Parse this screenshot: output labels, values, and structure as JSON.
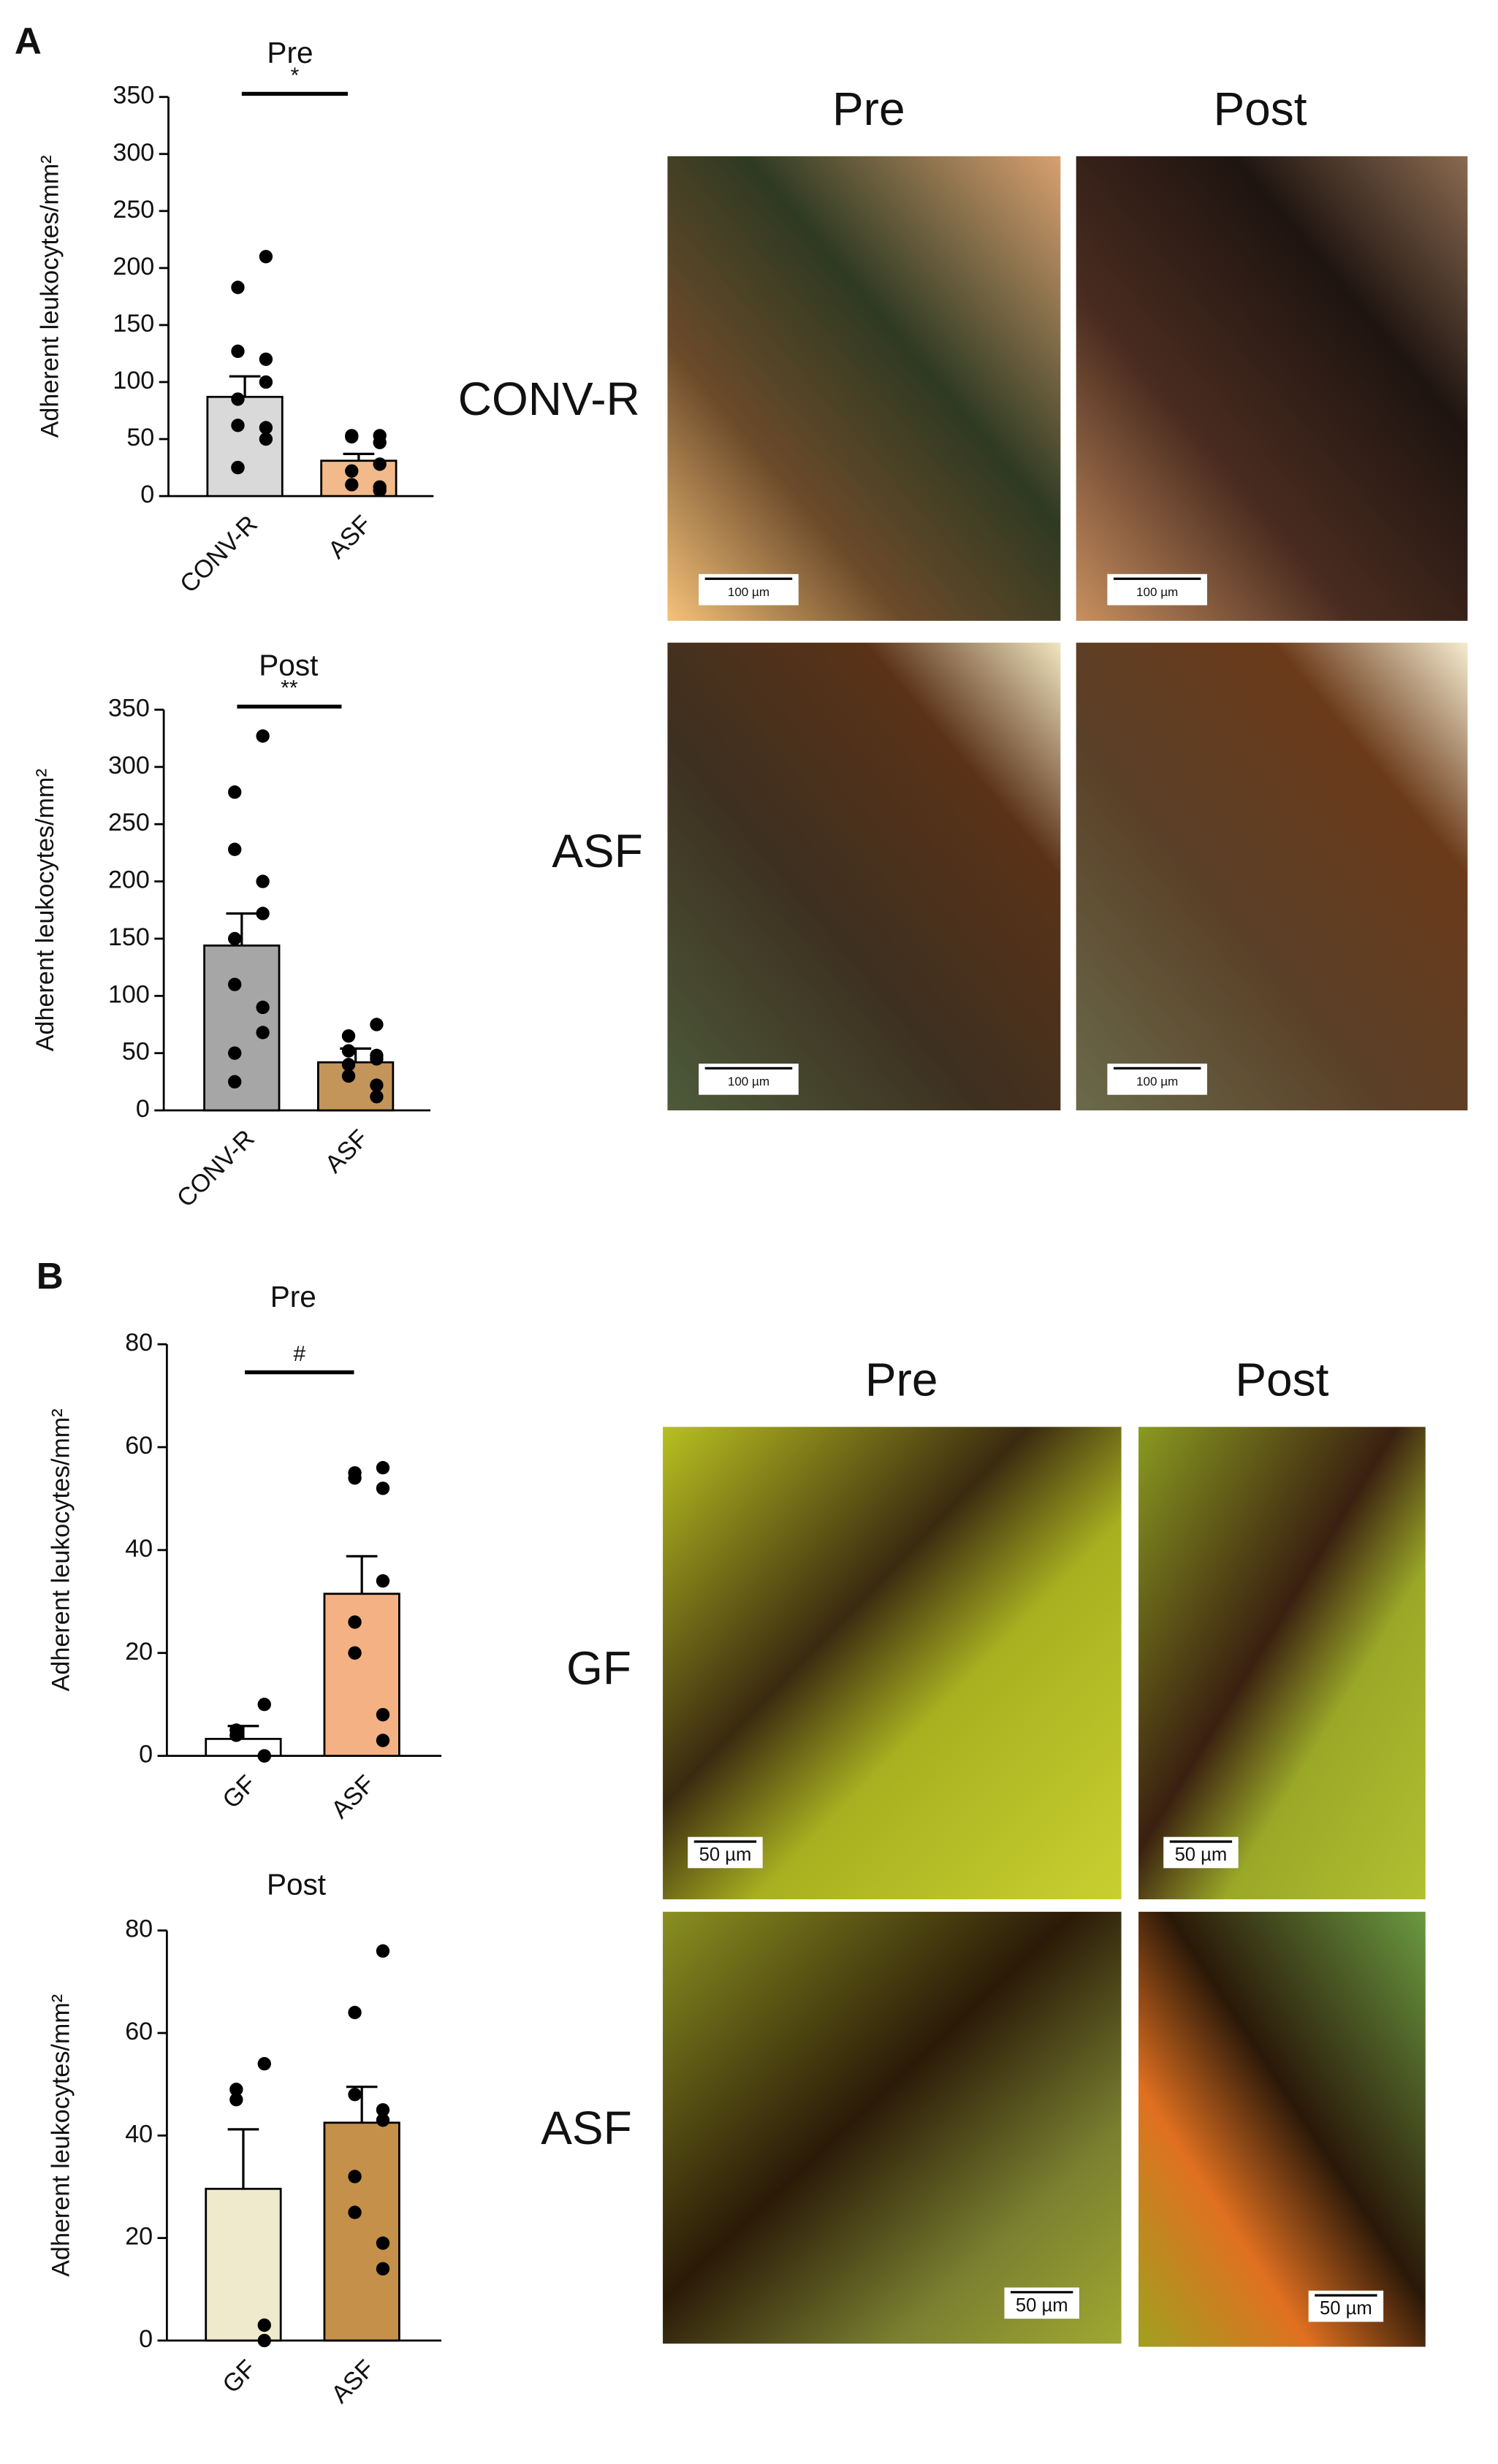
{
  "figure": {
    "panels": [
      {
        "label": "A",
        "columns": [
          "Pre",
          "Post"
        ],
        "rows": [
          "CONV-R",
          "ASF"
        ],
        "scale_bar": "100 µm"
      },
      {
        "label": "B",
        "columns": [
          "Pre",
          "Post"
        ],
        "rows": [
          "GF",
          "ASF"
        ],
        "scale_bar": "50 µm"
      }
    ]
  },
  "chart_data": [
    {
      "type": "bar",
      "title": "Pre",
      "y_label": "Adherent leukocytes/mm²",
      "categories": [
        "CONV-R",
        "ASF"
      ],
      "values": [
        87,
        31
      ],
      "errors": [
        18,
        6
      ],
      "colors": [
        "#d9d9d9",
        "#f2b98a"
      ],
      "points": [
        [
          210,
          183,
          127,
          120,
          100,
          85,
          62,
          60,
          50,
          25,
          25
        ],
        [
          53,
          53,
          52,
          47,
          28,
          22,
          10,
          8,
          5
        ]
      ],
      "ylim": [
        0,
        350
      ],
      "yticks": [
        0,
        50,
        100,
        150,
        200,
        250,
        300,
        350
      ],
      "annotation": "*"
    },
    {
      "type": "bar",
      "title": "Post",
      "y_label": "Adherent leukocytes/mm²",
      "categories": [
        "CONV-R",
        "ASF"
      ],
      "values": [
        144,
        42
      ],
      "errors": [
        28,
        12
      ],
      "colors": [
        "#a6a6a6",
        "#c4955a"
      ],
      "points": [
        [
          327,
          278,
          228,
          200,
          172,
          150,
          110,
          90,
          68,
          50,
          25
        ],
        [
          75,
          65,
          52,
          48,
          45,
          40,
          30,
          22,
          12
        ]
      ],
      "ylim": [
        0,
        350
      ],
      "yticks": [
        0,
        50,
        100,
        150,
        200,
        250,
        300,
        350
      ],
      "annotation": "**"
    },
    {
      "type": "bar",
      "title": "Pre",
      "y_label": "Adherent leukocytes/mm²",
      "categories": [
        "GF",
        "ASF"
      ],
      "values": [
        3.3,
        31.5
      ],
      "errors": [
        2.5,
        7.3
      ],
      "colors": [
        "#ffffff",
        "#f4b183"
      ],
      "points": [
        [
          10,
          5,
          4,
          0,
          0
        ],
        [
          56,
          55,
          54,
          52,
          34,
          26,
          20,
          8,
          3
        ]
      ],
      "ylim": [
        0,
        80
      ],
      "yticks": [
        0,
        20,
        40,
        60,
        80
      ],
      "annotation": "#"
    },
    {
      "type": "bar",
      "title": "Post",
      "y_label": "Adherent leukocytes/mm²",
      "categories": [
        "GF",
        "ASF"
      ],
      "values": [
        29.6,
        42.5
      ],
      "errors": [
        11.6,
        7
      ],
      "colors": [
        "#eeeacb",
        "#c5904a"
      ],
      "points": [
        [
          54,
          49,
          47,
          3,
          0
        ],
        [
          76,
          64,
          48,
          45,
          43,
          32,
          25,
          19,
          14
        ]
      ],
      "ylim": [
        0,
        80
      ],
      "yticks": [
        0,
        20,
        40,
        60,
        80
      ]
    }
  ]
}
